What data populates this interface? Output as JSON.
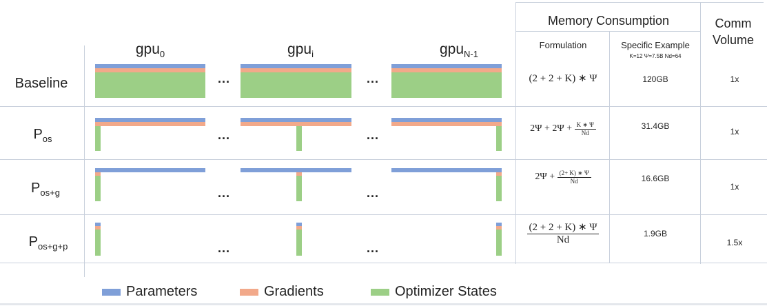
{
  "colors": {
    "parameters": "#7f9fd8",
    "gradients": "#f2a98a",
    "optimizer": "#9ccf86",
    "grid": "#c8d0dc"
  },
  "headers": {
    "gpu0": {
      "base": "gpu",
      "sub": "0"
    },
    "gpui": {
      "base": "gpu",
      "sub": "i"
    },
    "gpuN": {
      "base": "gpu",
      "sub": "N-1"
    },
    "memory": "Memory Consumption",
    "formulation": "Formulation",
    "specific": "Specific Example",
    "specific_params": "K=12 Ψ=7.5B Nd=64",
    "comm_line1": "Comm",
    "comm_line2": "Volume"
  },
  "ellipsis": "...",
  "rows": [
    {
      "label_base": "Baseline",
      "label_sub": "",
      "formula_text": "(2 + 2 + K) ∗ Ψ",
      "example": "120GB",
      "comm": "1x"
    },
    {
      "label_base": "P",
      "label_sub": "os",
      "formula_prefix": "2Ψ + 2Ψ + ",
      "formula_num": "K ∗ Ψ",
      "formula_den": "Nd",
      "example": "31.4GB",
      "comm": "1x"
    },
    {
      "label_base": "P",
      "label_sub": "os+g",
      "formula_prefix": "2Ψ + ",
      "formula_num": "(2+ K) ∗ Ψ",
      "formula_den": "Nd",
      "example": "16.6GB",
      "comm": "1x"
    },
    {
      "label_base": "P",
      "label_sub": "os+g+p",
      "formula_num": "(2 + 2 + K) ∗ Ψ",
      "formula_den": "Nd",
      "example": "1.9GB",
      "comm": "1.5x"
    }
  ],
  "legend": {
    "parameters": "Parameters",
    "gradients": "Gradients",
    "optimizer": "Optimizer States"
  }
}
